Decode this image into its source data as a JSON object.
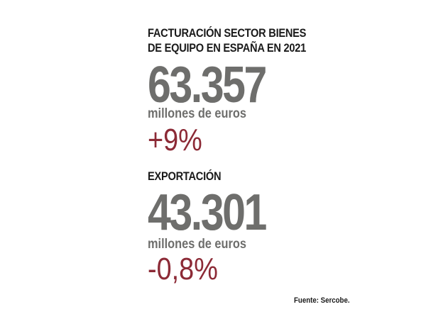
{
  "revenue": {
    "title_line1": "FACTURACIÓN SECTOR BIENES",
    "title_line2": "DE EQUIPO EN ESPAÑA EN 2021",
    "value": "63.357",
    "unit": "millones de euros",
    "change": "+9%"
  },
  "exports": {
    "title": "EXPORTACIÓN",
    "value": "43.301",
    "unit": "millones de euros",
    "change": "-0,8%"
  },
  "source": "Fuente: Sercobe.",
  "colors": {
    "number_gray": "#6e6e6c",
    "change_red": "#8c2a36",
    "heading_black": "#1a1a1a"
  }
}
